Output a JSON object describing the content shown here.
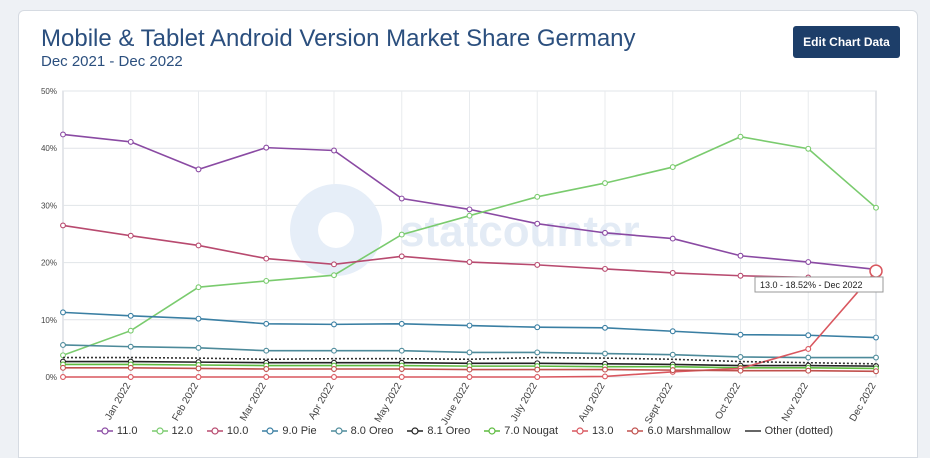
{
  "header": {
    "title": "Mobile & Tablet Android Version Market Share Germany",
    "subtitle": "Dec 2021 - Dec 2022",
    "edit_button": "Edit Chart Data"
  },
  "watermark": "statcounter",
  "tooltip": "13.0 - 18.52% - Dec 2022",
  "chart_data": {
    "type": "line",
    "categories": [
      "",
      "Jan 2022",
      "Feb 2022",
      "Mar 2022",
      "Apr 2022",
      "May 2022",
      "June 2022",
      "July 2022",
      "Aug 2022",
      "Sept 2022",
      "Oct 2022",
      "Nov 2022",
      "Dec 2022"
    ],
    "ylim": [
      0,
      50
    ],
    "yticks": [
      "0%",
      "10%",
      "20%",
      "30%",
      "40%",
      "50%"
    ],
    "grid": true,
    "legend_position": "bottom",
    "series": [
      {
        "name": "11.0",
        "color": "#8a4aa3",
        "values": [
          42.4,
          41.1,
          36.3,
          40.1,
          39.6,
          31.2,
          29.3,
          26.8,
          25.2,
          24.2,
          21.2,
          20.1,
          18.8
        ]
      },
      {
        "name": "12.0",
        "color": "#7acb6e",
        "values": [
          3.8,
          8.1,
          15.7,
          16.8,
          17.8,
          24.9,
          28.2,
          31.5,
          33.9,
          36.7,
          42.0,
          39.9,
          29.6
        ]
      },
      {
        "name": "10.0",
        "color": "#b84a6f",
        "values": [
          26.5,
          24.7,
          23.0,
          20.7,
          19.7,
          21.1,
          20.1,
          19.6,
          18.9,
          18.2,
          17.7,
          17.4,
          17.1
        ]
      },
      {
        "name": "9.0 Pie",
        "color": "#3a7fa3",
        "values": [
          11.3,
          10.7,
          10.2,
          9.3,
          9.2,
          9.3,
          9.0,
          8.7,
          8.6,
          8.0,
          7.4,
          7.3,
          6.9
        ]
      },
      {
        "name": "8.0 Oreo",
        "color": "#4d8a9a",
        "values": [
          5.6,
          5.3,
          5.1,
          4.6,
          4.6,
          4.6,
          4.3,
          4.3,
          4.1,
          3.9,
          3.5,
          3.4,
          3.4
        ]
      },
      {
        "name": "8.1 Oreo",
        "color": "#222222",
        "values": [
          2.7,
          2.7,
          2.6,
          2.5,
          2.5,
          2.5,
          2.4,
          2.4,
          2.3,
          2.2,
          2.0,
          2.0,
          1.9
        ]
      },
      {
        "name": "7.0 Nougat",
        "color": "#5dbb3f",
        "values": [
          2.2,
          2.2,
          2.1,
          2.0,
          2.0,
          2.0,
          1.9,
          1.9,
          1.8,
          1.8,
          1.6,
          1.6,
          1.5
        ]
      },
      {
        "name": "13.0",
        "color": "#d9575f",
        "values": [
          0.0,
          0.0,
          0.0,
          0.0,
          0.0,
          0.0,
          0.0,
          0.0,
          0.1,
          0.9,
          1.5,
          4.9,
          18.52
        ]
      },
      {
        "name": "6.0 Marshmallow",
        "color": "#c0504d",
        "values": [
          1.6,
          1.6,
          1.5,
          1.4,
          1.4,
          1.4,
          1.3,
          1.3,
          1.3,
          1.2,
          1.1,
          1.1,
          1.0
        ]
      },
      {
        "name": "Other (dotted)",
        "color": "#333333",
        "dotted": true,
        "values": [
          3.4,
          3.4,
          3.3,
          3.1,
          3.2,
          3.2,
          3.1,
          3.4,
          3.3,
          3.1,
          2.7,
          2.5,
          2.3
        ]
      }
    ]
  }
}
